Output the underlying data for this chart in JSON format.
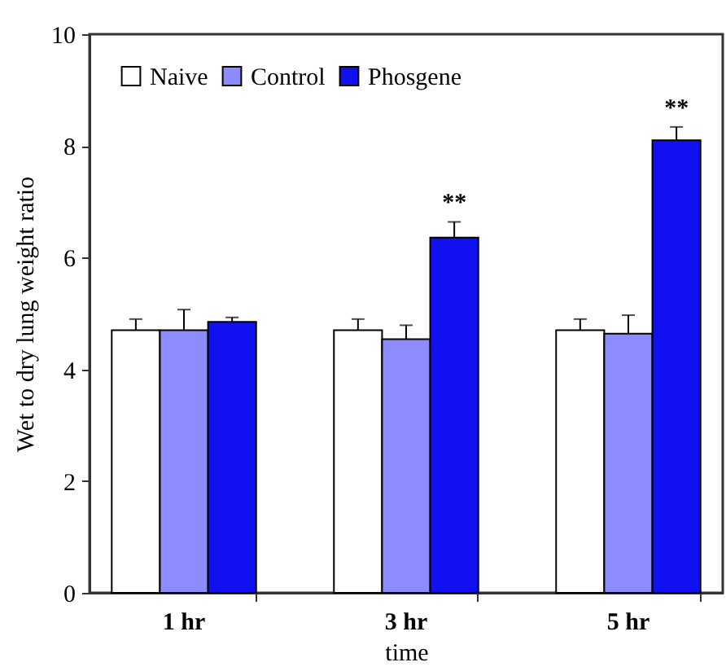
{
  "chart_data": {
    "type": "bar",
    "xlabel": "time",
    "ylabel": "Wet to dry lung weight ratio",
    "categories": [
      "1 hr",
      "3 hr",
      "5 hr"
    ],
    "series": [
      {
        "name": "Naive",
        "color": "#ffffff",
        "values": [
          4.7,
          4.7,
          4.7
        ],
        "errors": [
          [
            4.7,
            4.9
          ],
          [
            4.7,
            4.9
          ],
          [
            4.7,
            4.9
          ]
        ]
      },
      {
        "name": "Control",
        "color": "#8c8cff",
        "values": [
          4.7,
          4.54,
          4.64
        ],
        "errors": [
          [
            4.7,
            5.07
          ],
          [
            4.54,
            4.79
          ],
          [
            4.64,
            4.97
          ]
        ]
      },
      {
        "name": "Phosgene",
        "color": "#1010f0",
        "values": [
          4.85,
          6.36,
          8.1
        ],
        "errors": [
          [
            4.85,
            4.93
          ],
          [
            6.36,
            6.64
          ],
          [
            8.1,
            8.34
          ]
        ],
        "value_labels": [
          null,
          "**",
          "**"
        ]
      }
    ],
    "ylim": [
      0,
      10
    ],
    "yticks": [
      0,
      2,
      4,
      6,
      8,
      10
    ],
    "grid": false,
    "legend": "top left"
  }
}
